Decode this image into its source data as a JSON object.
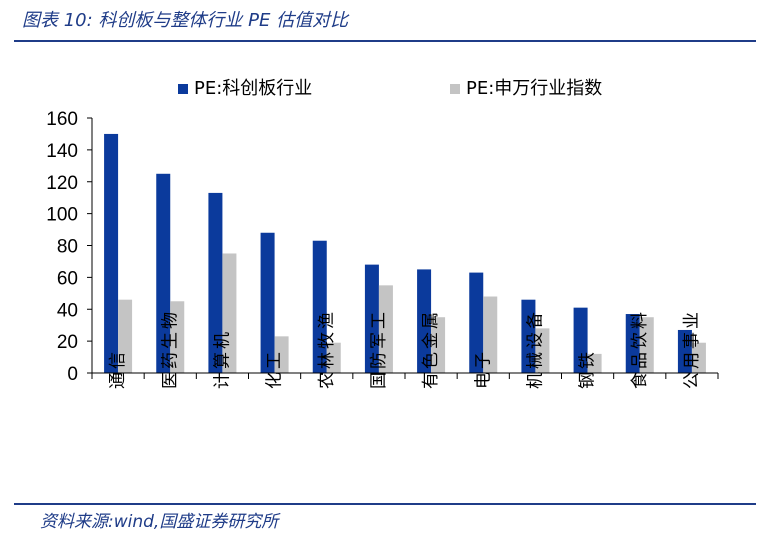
{
  "header": {
    "title": "图表 10:  科创板与整体行业 PE 估值对比"
  },
  "footer": {
    "source": "资料来源:wind,国盛证券研究所"
  },
  "colors": {
    "accent": "#1f3c88",
    "series_star": "#0b3a9c",
    "series_sw": "#c4c4c4"
  },
  "chart_data": {
    "type": "bar",
    "title": "",
    "xlabel": "",
    "ylabel": "",
    "ylim": [
      0,
      160
    ],
    "yticks": [
      0,
      20,
      40,
      60,
      80,
      100,
      120,
      140,
      160
    ],
    "grid": false,
    "legend": "top",
    "categories": [
      "通信",
      "医药生物",
      "计算机",
      "化工",
      "农林牧渔",
      "国防军工",
      "有色金属",
      "电子",
      "机械设备",
      "钢铁",
      "食品饮料",
      "公用事业"
    ],
    "series": [
      {
        "name": "PE:科创板行业",
        "color": "#0b3a9c",
        "values": [
          150,
          125,
          113,
          88,
          83,
          68,
          65,
          63,
          46,
          41,
          37,
          27
        ]
      },
      {
        "name": "PE:申万行业指数",
        "color": "#c4c4c4",
        "values": [
          46,
          45,
          75,
          23,
          19,
          55,
          35,
          48,
          28,
          12,
          35,
          19
        ]
      }
    ]
  }
}
